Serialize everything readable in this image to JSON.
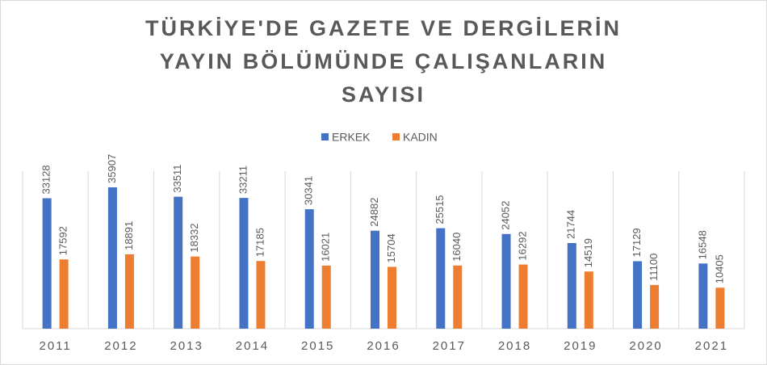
{
  "chart_data": {
    "type": "bar",
    "title": [
      "TÜRKİYE'DE GAZETE VE DERGİLERİN",
      "YAYIN BÖLÜMÜNDE ÇALIŞANLARIN",
      "SAYISI"
    ],
    "categories": [
      "2011",
      "2012",
      "2013",
      "2014",
      "2015",
      "2016",
      "2017",
      "2018",
      "2019",
      "2020",
      "2021"
    ],
    "series": [
      {
        "name": "ERKEK",
        "color": "#4472c4",
        "values": [
          33128,
          35907,
          33511,
          33211,
          30341,
          24882,
          25515,
          24052,
          21744,
          17129,
          16548
        ]
      },
      {
        "name": "KADIN",
        "color": "#ed7d31",
        "values": [
          17592,
          18891,
          18332,
          17185,
          16021,
          15704,
          16040,
          16292,
          14519,
          11100,
          10405
        ]
      }
    ],
    "ylim": [
      0,
      40000
    ]
  }
}
